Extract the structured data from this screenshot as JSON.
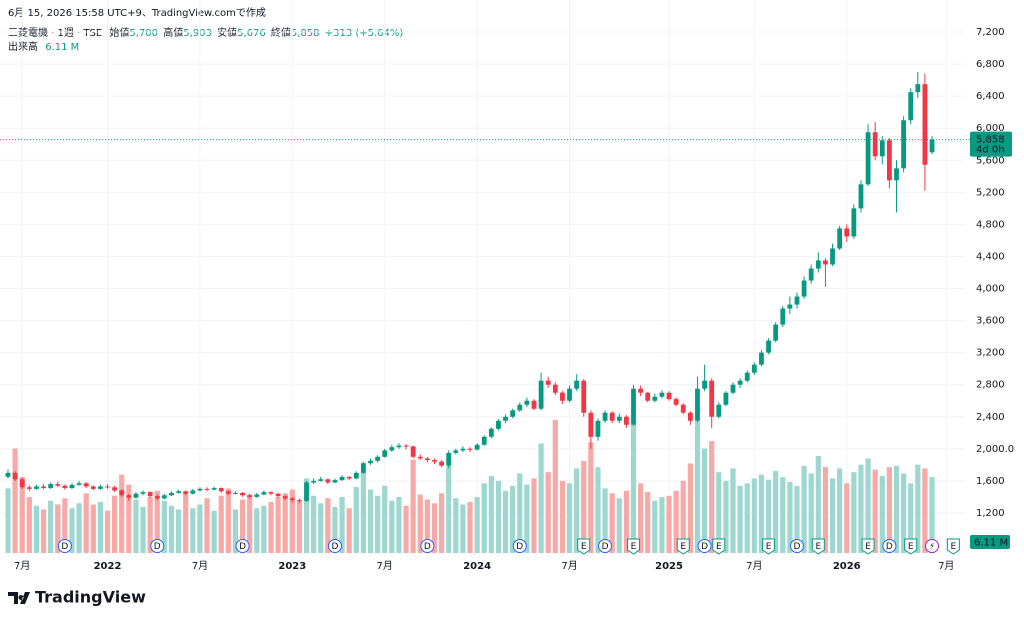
{
  "header": {
    "created": "6月 15, 2026 15:58 UTC+9、TradingView.comで作成",
    "symbol": "三菱電機 · 1週 · TSE",
    "open_label": "始値",
    "open": "5,700",
    "high_label": "高値",
    "high": "5,903",
    "low_label": "安値",
    "low": "5,676",
    "close_label": "終値",
    "close": "5,858",
    "change": "+313 (+5.64%)",
    "volume_label": "出来高",
    "volume": "6.11 M"
  },
  "footer": {
    "brand": "TradingView"
  },
  "chart_data": {
    "type": "candlestick",
    "up_color": "#089981",
    "down_color": "#f23645",
    "volume_up_color": "#9dd7cf",
    "volume_down_color": "#f7a9a7",
    "grid": true,
    "ylim": [
      700,
      7600
    ],
    "yticks": [
      {
        "value": 1200,
        "label": "1,200"
      },
      {
        "value": 1600,
        "label": "1,600"
      },
      {
        "value": 2000,
        "label": "2,000.0"
      },
      {
        "value": 2400,
        "label": "2,400"
      },
      {
        "value": 2800,
        "label": "2,800"
      },
      {
        "value": 3200,
        "label": "3,200"
      },
      {
        "value": 3600,
        "label": "3,600"
      },
      {
        "value": 4000,
        "label": "4,000"
      },
      {
        "value": 4400,
        "label": "4,400"
      },
      {
        "value": 4800,
        "label": "4,800"
      },
      {
        "value": 5200,
        "label": "5,200"
      },
      {
        "value": 5600,
        "label": "5,600"
      },
      {
        "value": 6000,
        "label": "6,000"
      },
      {
        "value": 6400,
        "label": "6,400"
      },
      {
        "value": 6800,
        "label": "6,800"
      },
      {
        "value": 7200,
        "label": "7,200"
      }
    ],
    "volume_ylim": [
      0,
      16
    ],
    "price_tag": {
      "value": 5858,
      "label": "5,858",
      "countdown": "4d 0h"
    },
    "volume_tag": "6.11 M",
    "categories": [
      null,
      null,
      "7月",
      null,
      null,
      null,
      null,
      null,
      null,
      null,
      null,
      null,
      null,
      null,
      "2022",
      null,
      null,
      null,
      null,
      null,
      null,
      null,
      null,
      null,
      null,
      null,
      null,
      "7月",
      null,
      null,
      null,
      null,
      null,
      null,
      null,
      null,
      null,
      null,
      null,
      null,
      "2023",
      null,
      null,
      null,
      null,
      null,
      null,
      null,
      null,
      null,
      null,
      null,
      null,
      "7月",
      null,
      null,
      null,
      null,
      null,
      null,
      null,
      null,
      null,
      null,
      null,
      null,
      "2024",
      null,
      null,
      null,
      null,
      null,
      null,
      null,
      null,
      null,
      null,
      null,
      null,
      "7月",
      null,
      null,
      null,
      null,
      null,
      null,
      null,
      null,
      null,
      null,
      null,
      null,
      null,
      "2025",
      null,
      null,
      null,
      null,
      null,
      null,
      null,
      null,
      null,
      null,
      null,
      "7月",
      null,
      null,
      null,
      null,
      null,
      null,
      null,
      null,
      null,
      null,
      null,
      null,
      "2026",
      null,
      null,
      null,
      null,
      null,
      null,
      null,
      null,
      null,
      null,
      null,
      null,
      null,
      "7月",
      null
    ],
    "events": [
      null,
      null,
      null,
      null,
      null,
      null,
      null,
      null,
      "D",
      null,
      null,
      null,
      null,
      null,
      null,
      null,
      null,
      null,
      null,
      null,
      null,
      "D",
      null,
      null,
      null,
      null,
      null,
      null,
      null,
      null,
      null,
      null,
      null,
      "D",
      null,
      null,
      null,
      null,
      null,
      null,
      null,
      null,
      null,
      null,
      null,
      null,
      "D",
      null,
      null,
      null,
      null,
      null,
      null,
      null,
      null,
      null,
      null,
      null,
      null,
      "D",
      null,
      null,
      null,
      null,
      null,
      null,
      null,
      null,
      null,
      null,
      null,
      null,
      "D",
      null,
      null,
      null,
      null,
      null,
      null,
      null,
      null,
      "E",
      null,
      null,
      "D",
      null,
      null,
      null,
      "E",
      null,
      null,
      null,
      null,
      null,
      null,
      "E",
      null,
      null,
      "D",
      null,
      "E",
      null,
      null,
      null,
      null,
      null,
      null,
      "E",
      null,
      null,
      null,
      "D",
      null,
      null,
      "E",
      null,
      null,
      null,
      null,
      null,
      null,
      "E",
      null,
      null,
      "D",
      null,
      null,
      "E",
      null,
      null,
      "⚡",
      null,
      null,
      "E"
    ],
    "ohlc": [
      [
        1650,
        1740,
        1630,
        1700
      ],
      [
        1700,
        1720,
        1600,
        1620
      ],
      [
        1620,
        1640,
        1500,
        1520
      ],
      [
        1520,
        1545,
        1470,
        1500
      ],
      [
        1500,
        1550,
        1490,
        1530
      ],
      [
        1530,
        1560,
        1495,
        1510
      ],
      [
        1510,
        1580,
        1500,
        1560
      ],
      [
        1560,
        1590,
        1520,
        1540
      ],
      [
        1540,
        1555,
        1490,
        1510
      ],
      [
        1510,
        1570,
        1500,
        1550
      ],
      [
        1550,
        1600,
        1540,
        1570
      ],
      [
        1570,
        1585,
        1510,
        1530
      ],
      [
        1530,
        1545,
        1480,
        1500
      ],
      [
        1500,
        1550,
        1490,
        1530
      ],
      [
        1530,
        1560,
        1500,
        1520
      ],
      [
        1520,
        1540,
        1460,
        1480
      ],
      [
        1480,
        1500,
        1400,
        1420
      ],
      [
        1420,
        1440,
        1350,
        1390
      ],
      [
        1390,
        1460,
        1380,
        1440
      ],
      [
        1440,
        1480,
        1420,
        1460
      ],
      [
        1460,
        1470,
        1390,
        1410
      ],
      [
        1410,
        1430,
        1360,
        1380
      ],
      [
        1380,
        1440,
        1370,
        1420
      ],
      [
        1420,
        1470,
        1410,
        1450
      ],
      [
        1450,
        1490,
        1440,
        1470
      ],
      [
        1470,
        1480,
        1420,
        1440
      ],
      [
        1440,
        1500,
        1430,
        1480
      ],
      [
        1480,
        1520,
        1470,
        1500
      ],
      [
        1500,
        1520,
        1470,
        1490
      ],
      [
        1490,
        1530,
        1480,
        1510
      ],
      [
        1510,
        1520,
        1450,
        1470
      ],
      [
        1470,
        1480,
        1420,
        1440
      ],
      [
        1440,
        1470,
        1430,
        1450
      ],
      [
        1450,
        1460,
        1400,
        1420
      ],
      [
        1420,
        1440,
        1380,
        1400
      ],
      [
        1400,
        1450,
        1390,
        1430
      ],
      [
        1430,
        1480,
        1420,
        1460
      ],
      [
        1460,
        1470,
        1420,
        1440
      ],
      [
        1440,
        1450,
        1390,
        1410
      ],
      [
        1410,
        1420,
        1360,
        1380
      ],
      [
        1380,
        1400,
        1330,
        1360
      ],
      [
        1360,
        1380,
        1320,
        1350
      ],
      [
        1350,
        1600,
        1340,
        1580
      ],
      [
        1580,
        1630,
        1560,
        1600
      ],
      [
        1600,
        1650,
        1590,
        1620
      ],
      [
        1620,
        1630,
        1560,
        1580
      ],
      [
        1580,
        1630,
        1570,
        1610
      ],
      [
        1610,
        1670,
        1600,
        1650
      ],
      [
        1650,
        1660,
        1610,
        1630
      ],
      [
        1630,
        1720,
        1620,
        1700
      ],
      [
        1700,
        1840,
        1690,
        1820
      ],
      [
        1820,
        1880,
        1800,
        1850
      ],
      [
        1850,
        1920,
        1830,
        1900
      ],
      [
        1900,
        2000,
        1890,
        1980
      ],
      [
        1980,
        2050,
        1960,
        2020
      ],
      [
        2020,
        2070,
        2000,
        2040
      ],
      [
        2040,
        2060,
        1990,
        2030
      ],
      [
        2030,
        2040,
        1880,
        1900
      ],
      [
        1900,
        1930,
        1860,
        1880
      ],
      [
        1880,
        1900,
        1830,
        1860
      ],
      [
        1860,
        1880,
        1810,
        1840
      ],
      [
        1840,
        1860,
        1770,
        1790
      ],
      [
        1790,
        1980,
        1760,
        1950
      ],
      [
        1950,
        2000,
        1930,
        1980
      ],
      [
        1980,
        2030,
        1960,
        2000
      ],
      [
        2000,
        2020,
        1960,
        1990
      ],
      [
        1990,
        2070,
        1980,
        2050
      ],
      [
        2050,
        2170,
        2040,
        2150
      ],
      [
        2150,
        2270,
        2130,
        2250
      ],
      [
        2250,
        2370,
        2230,
        2350
      ],
      [
        2350,
        2430,
        2320,
        2400
      ],
      [
        2400,
        2500,
        2380,
        2480
      ],
      [
        2480,
        2580,
        2460,
        2550
      ],
      [
        2550,
        2640,
        2520,
        2600
      ],
      [
        2600,
        2620,
        2480,
        2500
      ],
      [
        2500,
        2950,
        2480,
        2850
      ],
      [
        2850,
        2900,
        2760,
        2800
      ],
      [
        2800,
        2830,
        2670,
        2700
      ],
      [
        2700,
        2720,
        2560,
        2600
      ],
      [
        2600,
        2790,
        2580,
        2750
      ],
      [
        2750,
        2930,
        2720,
        2850
      ],
      [
        2850,
        2870,
        2400,
        2450
      ],
      [
        2450,
        2480,
        2000,
        2150
      ],
      [
        2150,
        2380,
        2100,
        2350
      ],
      [
        2350,
        2480,
        2320,
        2450
      ],
      [
        2450,
        2470,
        2320,
        2350
      ],
      [
        2350,
        2440,
        2320,
        2400
      ],
      [
        2400,
        2420,
        2260,
        2300
      ],
      [
        2300,
        2800,
        2290,
        2750
      ],
      [
        2750,
        2790,
        2660,
        2700
      ],
      [
        2700,
        2710,
        2580,
        2600
      ],
      [
        2600,
        2690,
        2580,
        2650
      ],
      [
        2650,
        2730,
        2630,
        2700
      ],
      [
        2700,
        2720,
        2600,
        2620
      ],
      [
        2620,
        2640,
        2530,
        2550
      ],
      [
        2550,
        2570,
        2430,
        2450
      ],
      [
        2450,
        2470,
        2300,
        2350
      ],
      [
        2350,
        2900,
        2330,
        2750
      ],
      [
        2750,
        3050,
        2720,
        2850
      ],
      [
        2850,
        2880,
        2260,
        2400
      ],
      [
        2400,
        2580,
        2380,
        2550
      ],
      [
        2550,
        2720,
        2530,
        2700
      ],
      [
        2700,
        2830,
        2680,
        2800
      ],
      [
        2800,
        2880,
        2760,
        2850
      ],
      [
        2850,
        2980,
        2830,
        2950
      ],
      [
        2950,
        3080,
        2920,
        3050
      ],
      [
        3050,
        3230,
        3030,
        3200
      ],
      [
        3200,
        3380,
        3180,
        3350
      ],
      [
        3350,
        3580,
        3330,
        3550
      ],
      [
        3550,
        3780,
        3520,
        3750
      ],
      [
        3750,
        3900,
        3680,
        3800
      ],
      [
        3800,
        3950,
        3750,
        3900
      ],
      [
        3900,
        4150,
        3870,
        4100
      ],
      [
        4100,
        4300,
        4060,
        4250
      ],
      [
        4250,
        4450,
        4200,
        4350
      ],
      [
        4350,
        4380,
        4020,
        4300
      ],
      [
        4300,
        4560,
        4280,
        4500
      ],
      [
        4500,
        4780,
        4480,
        4750
      ],
      [
        4750,
        4800,
        4580,
        4650
      ],
      [
        4650,
        5050,
        4620,
        5000
      ],
      [
        5000,
        5350,
        4950,
        5300
      ],
      [
        5300,
        6050,
        5280,
        5950
      ],
      [
        5950,
        6080,
        5600,
        5650
      ],
      [
        5650,
        5900,
        5550,
        5850
      ],
      [
        5850,
        5880,
        5250,
        5350
      ],
      [
        5350,
        5600,
        4950,
        5500
      ],
      [
        5500,
        6150,
        5450,
        6100
      ],
      [
        6100,
        6500,
        6050,
        6450
      ],
      [
        6450,
        6700,
        6380,
        6550
      ],
      [
        6550,
        6680,
        5220,
        5545
      ],
      [
        5700,
        5903,
        5676,
        5858
      ],
      null,
      null,
      null
    ],
    "volumes": [
      5.2,
      8.4,
      6.1,
      4.5,
      3.8,
      3.5,
      4.2,
      3.9,
      4.4,
      3.6,
      4.0,
      4.8,
      3.9,
      4.1,
      3.4,
      4.6,
      6.3,
      5.5,
      4.3,
      3.7,
      4.5,
      5.0,
      4.2,
      3.8,
      3.5,
      4.9,
      3.6,
      3.9,
      4.4,
      3.4,
      4.6,
      5.2,
      3.5,
      4.3,
      4.7,
      3.6,
      3.8,
      4.1,
      4.5,
      4.8,
      5.1,
      4.2,
      6.0,
      4.6,
      4.0,
      4.4,
      3.7,
      4.5,
      3.6,
      5.3,
      6.6,
      5.1,
      4.6,
      5.4,
      4.2,
      4.5,
      3.8,
      7.5,
      4.7,
      4.3,
      4.0,
      4.8,
      7.0,
      4.4,
      3.9,
      4.1,
      4.5,
      5.6,
      6.2,
      5.8,
      5.0,
      5.4,
      6.4,
      5.5,
      6.0,
      8.8,
      6.5,
      10.7,
      5.8,
      5.6,
      6.8,
      7.4,
      8.9,
      6.9,
      5.2,
      4.8,
      4.4,
      5.0,
      10.3,
      5.6,
      4.9,
      4.2,
      4.5,
      4.6,
      5.0,
      5.8,
      7.2,
      10.6,
      8.4,
      9.0,
      6.5,
      5.8,
      6.8,
      5.4,
      5.6,
      6.0,
      6.3,
      5.9,
      6.6,
      6.1,
      5.7,
      5.4,
      7.0,
      6.4,
      7.8,
      6.9,
      6.0,
      6.8,
      5.6,
      6.5,
      7.1,
      7.6,
      6.7,
      6.2,
      6.9,
      7.0,
      6.4,
      5.6,
      7.1,
      6.8,
      6.11,
      null,
      null,
      null
    ]
  }
}
